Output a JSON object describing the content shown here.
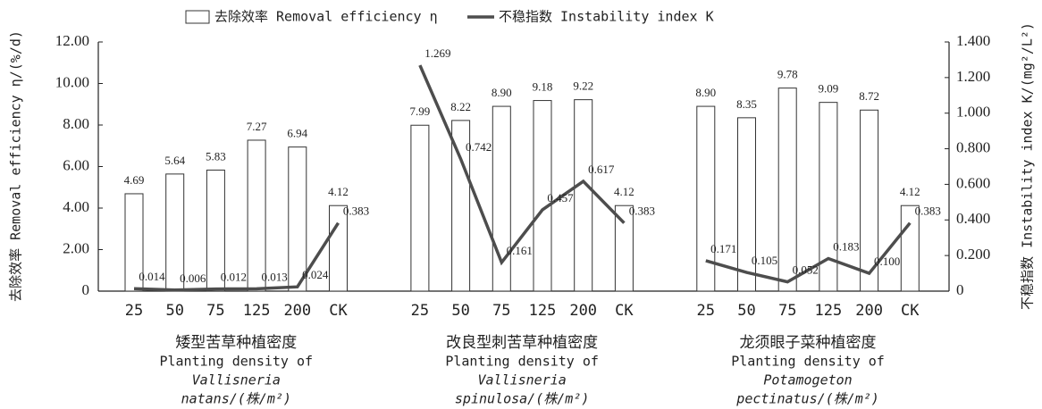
{
  "chart_data": {
    "type": "bar-line",
    "ylabel": "去除效率 Removal efficiency η/(%/d)",
    "y2label": "不稳指数 Instability index K/(mg²/L²)",
    "ylim": [
      0,
      12
    ],
    "yticks": [
      0,
      {
        "value": 2,
        "label": "2.00"
      },
      {
        "value": 4,
        "label": "4.00"
      },
      {
        "value": 6,
        "label": "6.00"
      },
      {
        "value": 8,
        "label": "8.00"
      },
      {
        "value": 10,
        "label": "10.00"
      },
      {
        "value": 12,
        "label": "12.00"
      }
    ],
    "y2lim": [
      0,
      1.4
    ],
    "y2ticks": [
      0,
      {
        "value": 0.2,
        "label": "0.200"
      },
      {
        "value": 0.4,
        "label": "0.400"
      },
      {
        "value": 0.6,
        "label": "0.600"
      },
      {
        "value": 0.8,
        "label": "0.800"
      },
      {
        "value": 1.0,
        "label": "1.000"
      },
      {
        "value": 1.2,
        "label": "1.200"
      },
      {
        "value": 1.4,
        "label": "1.400"
      }
    ],
    "groups": [
      {
        "label": [
          "矮型苦草种植密度",
          "Planting density of",
          "Vallisneria",
          "natans/(株/m²)"
        ],
        "categories": [
          "25",
          "50",
          "75",
          "125",
          "200",
          "CK"
        ]
      },
      {
        "label": [
          "改良型刺苦草种植密度",
          "Planting density of",
          "Vallisneria",
          "spinulosa/(株/m²)"
        ],
        "categories": [
          "25",
          "50",
          "75",
          "125",
          "200",
          "CK"
        ]
      },
      {
        "label": [
          "龙须眼子菜种植密度",
          "Planting density of",
          "Potamogeton",
          "pectinatus/(株/m²)"
        ],
        "categories": [
          "25",
          "50",
          "75",
          "125",
          "200",
          "CK"
        ]
      }
    ],
    "series": [
      {
        "name": "去除效率 Removal efficiency η",
        "type": "bar",
        "color": "#ffffff",
        "values": [
          [
            4.69,
            5.64,
            5.83,
            7.27,
            6.94,
            4.12
          ],
          [
            7.99,
            8.22,
            8.9,
            9.18,
            9.22,
            4.12
          ],
          [
            8.9,
            8.35,
            9.78,
            9.09,
            8.72,
            4.12
          ]
        ],
        "value_labels": [
          [
            "4.69",
            "5.64",
            "5.83",
            "7.27",
            "6.94",
            "4.12"
          ],
          [
            "7.99",
            "8.22",
            "8.90",
            "9.18",
            "9.22",
            "4.12"
          ],
          [
            "8.90",
            "8.35",
            "9.78",
            "9.09",
            "8.72",
            "4.12"
          ]
        ]
      },
      {
        "name": "不稳指数 Instability index K",
        "type": "line",
        "axis": "y2",
        "color": "#4d4d4d",
        "values": [
          [
            0.014,
            0.006,
            0.012,
            0.013,
            0.024,
            0.383
          ],
          [
            1.269,
            0.742,
            0.161,
            0.457,
            0.617,
            0.383
          ],
          [
            0.171,
            0.105,
            0.052,
            0.183,
            0.1,
            0.383
          ]
        ],
        "value_labels": [
          [
            "0.014",
            "0.006",
            "0.012",
            "0.013",
            "0.024",
            "0.383"
          ],
          [
            "1.269",
            "0.742",
            "0.161",
            "0.457",
            "0.617",
            "0.383"
          ],
          [
            "0.171",
            "0.105",
            "0.052",
            "0.183",
            "0.100",
            "0.383"
          ]
        ]
      }
    ]
  }
}
